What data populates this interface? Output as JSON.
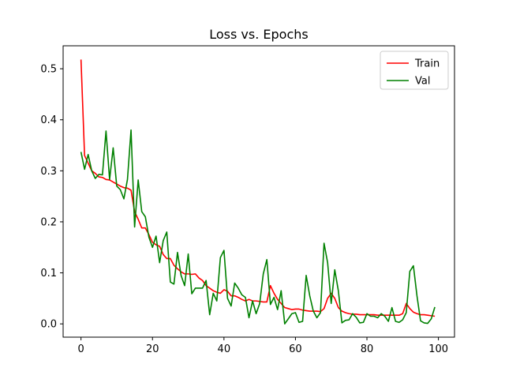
{
  "chart_data": {
    "type": "line",
    "title": "Loss vs. Epochs",
    "xlabel": "",
    "ylabel": "",
    "xlim": [
      -5,
      104.5
    ],
    "ylim": [
      -0.026,
      0.545
    ],
    "xticks": [
      0,
      20,
      40,
      60,
      80,
      100
    ],
    "yticks": [
      0.0,
      0.1,
      0.2,
      0.3,
      0.4,
      0.5
    ],
    "grid": false,
    "legend_position": "top-right",
    "series": [
      {
        "name": "Train",
        "color": "#ff0000",
        "x": [
          0,
          1,
          2,
          3,
          4,
          5,
          6,
          7,
          8,
          9,
          10,
          11,
          12,
          13,
          14,
          15,
          16,
          17,
          18,
          19,
          20,
          21,
          22,
          23,
          24,
          25,
          26,
          27,
          28,
          29,
          30,
          31,
          32,
          33,
          34,
          35,
          36,
          37,
          38,
          39,
          40,
          41,
          42,
          43,
          44,
          45,
          46,
          47,
          48,
          49,
          50,
          51,
          52,
          53,
          54,
          55,
          56,
          57,
          58,
          59,
          60,
          61,
          62,
          63,
          64,
          65,
          66,
          67,
          68,
          69,
          70,
          71,
          72,
          73,
          74,
          75,
          76,
          77,
          78,
          79,
          80,
          81,
          82,
          83,
          84,
          85,
          86,
          87,
          88,
          89,
          90,
          91,
          92,
          93,
          94,
          95,
          96,
          97,
          98,
          99
        ],
        "y": [
          0.518,
          0.33,
          0.315,
          0.3,
          0.295,
          0.288,
          0.287,
          0.283,
          0.282,
          0.278,
          0.274,
          0.27,
          0.267,
          0.266,
          0.262,
          0.22,
          0.205,
          0.188,
          0.188,
          0.175,
          0.16,
          0.155,
          0.152,
          0.136,
          0.128,
          0.128,
          0.115,
          0.108,
          0.102,
          0.098,
          0.098,
          0.097,
          0.098,
          0.09,
          0.085,
          0.075,
          0.07,
          0.065,
          0.062,
          0.06,
          0.067,
          0.064,
          0.055,
          0.055,
          0.052,
          0.048,
          0.045,
          0.048,
          0.045,
          0.045,
          0.044,
          0.043,
          0.043,
          0.075,
          0.06,
          0.048,
          0.04,
          0.032,
          0.03,
          0.028,
          0.029,
          0.029,
          0.027,
          0.026,
          0.025,
          0.025,
          0.025,
          0.024,
          0.03,
          0.05,
          0.06,
          0.05,
          0.032,
          0.025,
          0.022,
          0.02,
          0.019,
          0.019,
          0.018,
          0.018,
          0.018,
          0.018,
          0.018,
          0.017,
          0.017,
          0.017,
          0.017,
          0.017,
          0.017,
          0.017,
          0.02,
          0.04,
          0.03,
          0.023,
          0.02,
          0.018,
          0.018,
          0.017,
          0.016,
          0.015
        ]
      },
      {
        "name": "Val",
        "color": "#008000",
        "x": [
          0,
          1,
          2,
          3,
          4,
          5,
          6,
          7,
          8,
          9,
          10,
          11,
          12,
          13,
          14,
          15,
          16,
          17,
          18,
          19,
          20,
          21,
          22,
          23,
          24,
          25,
          26,
          27,
          28,
          29,
          30,
          31,
          32,
          33,
          34,
          35,
          36,
          37,
          38,
          39,
          40,
          41,
          42,
          43,
          44,
          45,
          46,
          47,
          48,
          49,
          50,
          51,
          52,
          53,
          54,
          55,
          56,
          57,
          58,
          59,
          60,
          61,
          62,
          63,
          64,
          65,
          66,
          67,
          68,
          69,
          70,
          71,
          72,
          73,
          74,
          75,
          76,
          77,
          78,
          79,
          80,
          81,
          82,
          83,
          84,
          85,
          86,
          87,
          88,
          89,
          90,
          91,
          92,
          93,
          94,
          95,
          96,
          97,
          98,
          99
        ],
        "y": [
          0.337,
          0.303,
          0.332,
          0.3,
          0.285,
          0.293,
          0.292,
          0.378,
          0.283,
          0.345,
          0.27,
          0.263,
          0.245,
          0.283,
          0.38,
          0.19,
          0.282,
          0.22,
          0.21,
          0.17,
          0.15,
          0.172,
          0.12,
          0.163,
          0.18,
          0.082,
          0.078,
          0.14,
          0.095,
          0.075,
          0.137,
          0.059,
          0.07,
          0.07,
          0.07,
          0.085,
          0.018,
          0.06,
          0.045,
          0.13,
          0.144,
          0.05,
          0.035,
          0.08,
          0.07,
          0.057,
          0.052,
          0.012,
          0.045,
          0.02,
          0.04,
          0.098,
          0.126,
          0.038,
          0.052,
          0.028,
          0.065,
          0.0,
          0.01,
          0.02,
          0.022,
          0.003,
          0.005,
          0.095,
          0.055,
          0.025,
          0.012,
          0.022,
          0.158,
          0.12,
          0.04,
          0.106,
          0.065,
          0.002,
          0.007,
          0.008,
          0.02,
          0.013,
          0.002,
          0.003,
          0.02,
          0.015,
          0.015,
          0.012,
          0.02,
          0.015,
          0.005,
          0.032,
          0.005,
          0.003,
          0.008,
          0.022,
          0.103,
          0.114,
          0.055,
          0.006,
          0.002,
          0.001,
          0.01,
          0.033
        ]
      }
    ]
  }
}
